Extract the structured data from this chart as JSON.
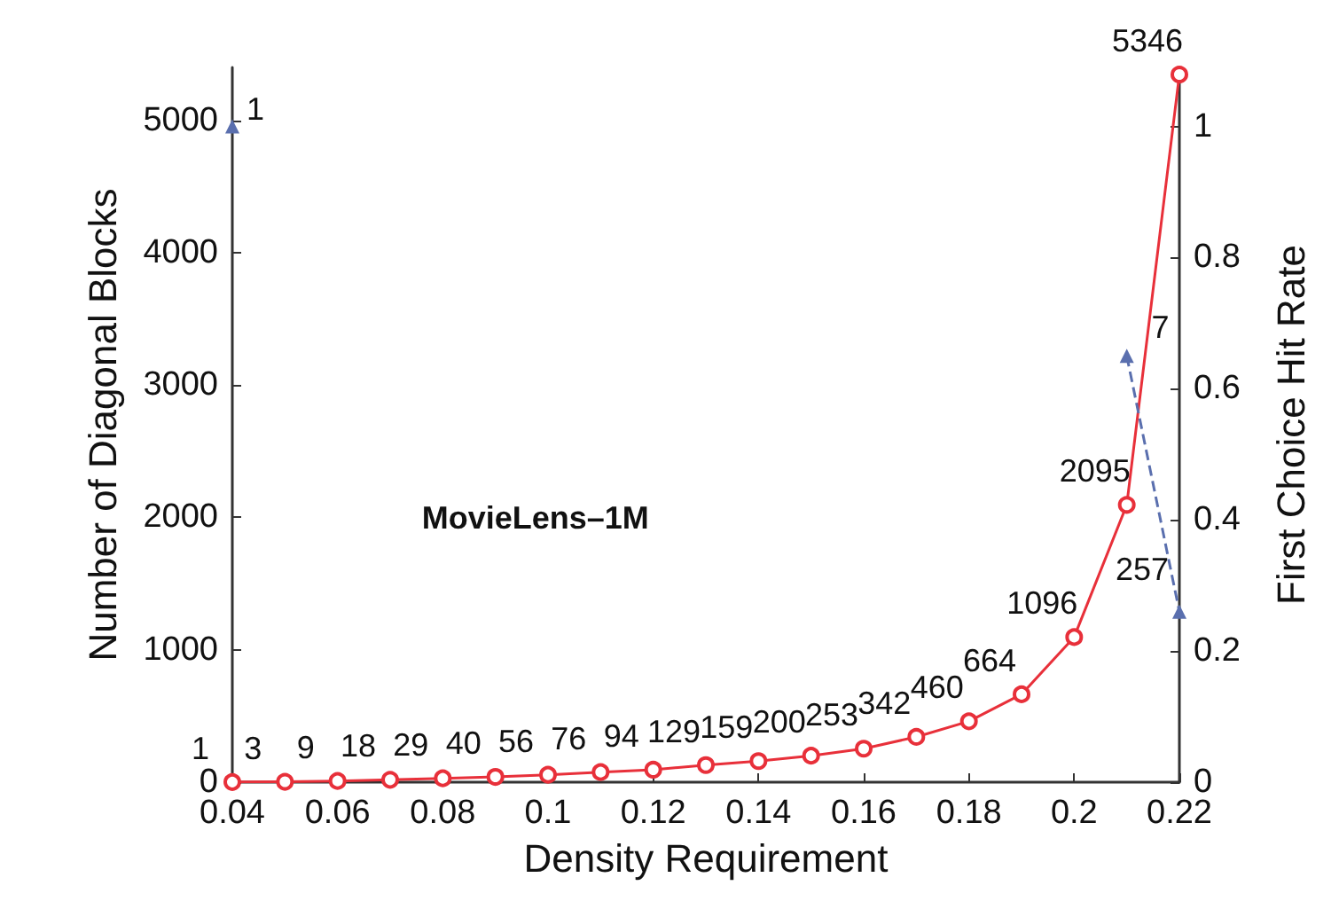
{
  "chart_data": {
    "type": "line",
    "xlabel": "Density Requirement",
    "ylabel": "Number of Diagonal Blocks",
    "y2label": "First Choice Hit Rate",
    "annotations": [
      "MovieLens–1M",
      {
        "text": "1",
        "x": 0.04,
        "y": 4900
      },
      {
        "text": "7",
        "x": 0.212,
        "y": 3250
      },
      {
        "text": "257",
        "x": 0.22,
        "y": 1420
      }
    ],
    "x": [
      0.04,
      0.05,
      0.06,
      0.07,
      0.08,
      0.09,
      0.1,
      0.11,
      0.12,
      0.13,
      0.14,
      0.15,
      0.16,
      0.17,
      0.18,
      0.19,
      0.2,
      0.21,
      0.22
    ],
    "series": [
      {
        "color": "#e8303a",
        "marker": "circle",
        "line_style": "solid",
        "data_labels": true,
        "values": [
          1,
          3,
          9,
          18,
          29,
          40,
          56,
          76,
          94,
          129,
          159,
          200,
          253,
          342,
          460,
          664,
          1096,
          2095,
          5346
        ]
      },
      {
        "color": "#5a6fae",
        "marker": "triangle",
        "line_style": "dashed",
        "axis": "y2",
        "x": [
          0.04,
          0.05,
          0.21,
          0.22
        ],
        "values": [
          1,
          null,
          0.65,
          0.26
        ]
      }
    ],
    "xlim": [
      0.04,
      0.22
    ],
    "xticks": [
      {
        "value": 0.04,
        "label": "0.04"
      },
      {
        "value": 0.06,
        "label": "0.06"
      },
      {
        "value": 0.08,
        "label": "0.08"
      },
      {
        "value": 0.1,
        "label": "0.1"
      },
      {
        "value": 0.12,
        "label": "0.12"
      },
      {
        "value": 0.14,
        "label": "0.14"
      },
      {
        "value": 0.16,
        "label": "0.16"
      },
      {
        "value": 0.18,
        "label": "0.18"
      },
      {
        "value": 0.2,
        "label": "0.2"
      },
      {
        "value": 0.22,
        "label": "0.22"
      }
    ],
    "ylim": [
      0,
      5400
    ],
    "yticks": [
      0,
      1000,
      2000,
      3000,
      4000,
      5000
    ],
    "y2lim": [
      0,
      1.09
    ],
    "y2ticks": [
      0,
      0.2,
      0.4,
      0.6,
      0.8,
      1
    ],
    "grid": false
  }
}
